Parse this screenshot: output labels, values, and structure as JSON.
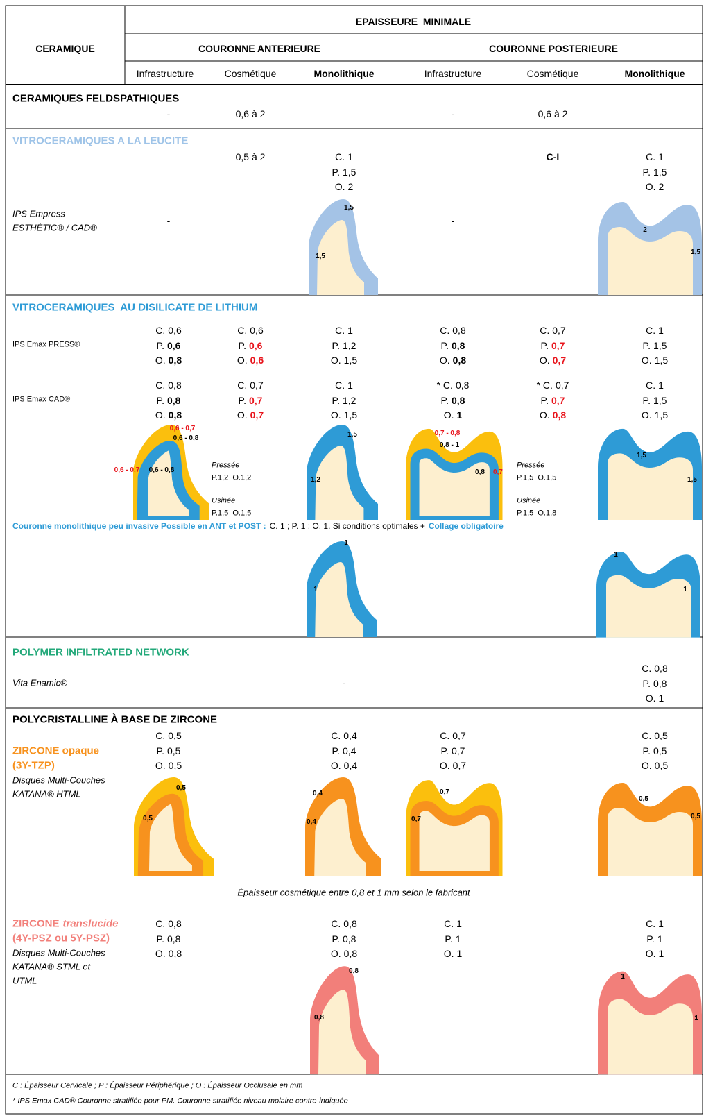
{
  "header": {
    "ceramique": "CERAMIQUE",
    "title": "EPAISSEURE  MINIMALE",
    "anterieure": "COURONNE ANTERIEURE",
    "posterieure": "COURONNE POSTERIEURE",
    "columns": [
      "Infrastructure",
      "Cosmétique",
      "Monolithique",
      "Infrastructure",
      "Cosmétique",
      "Monolithique"
    ]
  },
  "feldspathiques": {
    "title": "CERAMIQUES FELDSPATHIQUES",
    "infra_ant": "-",
    "cosm_ant": "0,6 à 2",
    "infra_post": "-",
    "cosm_post": "0,6 à 2"
  },
  "leucite": {
    "title": "VITROCERAMIQUES A LA LEUCITE",
    "product": [
      "IPS Empress",
      "ESTHÉTIC® / CAD®"
    ],
    "infra_ant": "-",
    "cosm_ant": "0,5 à 2",
    "mono_ant": [
      [
        "C.",
        "1"
      ],
      [
        "P.",
        "1,5"
      ],
      [
        "O.",
        "2"
      ]
    ],
    "infra_post": "-",
    "cosm_post": "C-I",
    "mono_post": [
      [
        "C.",
        "1"
      ],
      [
        "P.",
        "1,5"
      ],
      [
        "O.",
        "2"
      ]
    ],
    "diagram_labels": [
      "1,5",
      "1,5",
      "2",
      "1,5"
    ]
  },
  "disilicate": {
    "title": "VITROCERAMIQUES  AU DISILICATE DE LITHIUM",
    "rows": [
      {
        "product": "IPS Emax PRESS®",
        "cells": [
          [
            [
              "C.",
              "0,6"
            ],
            [
              "P.",
              "0,6"
            ],
            [
              "O.",
              "0,8"
            ]
          ],
          [
            [
              "C.",
              "0,6"
            ],
            [
              "P.",
              "0,6"
            ],
            [
              "O.",
              "0,6"
            ]
          ],
          [
            [
              "C.",
              "1"
            ],
            [
              "P.",
              "1,2"
            ],
            [
              "O.",
              "1,5"
            ]
          ],
          [
            [
              "C.",
              "0,8"
            ],
            [
              "P.",
              "0,8"
            ],
            [
              "O.",
              "0,8"
            ]
          ],
          [
            [
              "C.",
              "0,7"
            ],
            [
              "P.",
              "0,7"
            ],
            [
              "O.",
              "0,7"
            ]
          ],
          [
            [
              "C.",
              "1"
            ],
            [
              "P.",
              "1,5"
            ],
            [
              "O.",
              "1,5"
            ]
          ]
        ]
      },
      {
        "product": "IPS Emax CAD®",
        "cells": [
          [
            [
              "C.",
              "0,8"
            ],
            [
              "P.",
              "0,8"
            ],
            [
              "O.",
              "0,8"
            ]
          ],
          [
            [
              "C.",
              "0,7"
            ],
            [
              "P.",
              "0,7"
            ],
            [
              "O.",
              "0,7"
            ]
          ],
          [
            [
              "C.",
              "1"
            ],
            [
              "P.",
              "1,2"
            ],
            [
              "O.",
              "1,5"
            ]
          ],
          [
            [
              "* C.",
              "0,8"
            ],
            [
              "P.",
              "0,8"
            ],
            [
              "O.",
              "1"
            ]
          ],
          [
            [
              "* C.",
              "0,7"
            ],
            [
              "P.",
              "0,7"
            ],
            [
              "O.",
              "0,8"
            ]
          ],
          [
            [
              "C.",
              "1"
            ],
            [
              "P.",
              "1,5"
            ],
            [
              "O.",
              "1,5"
            ]
          ]
        ]
      }
    ],
    "diagram_labels": [
      "0,6 - 0,7",
      "0,6 - 0,8",
      "0,6 - 0,7",
      "0,6 - 0,8",
      "1,5",
      "1,2",
      "0,7 - 0,8",
      "0,8 - 1",
      "0,8",
      "0,7",
      "1,5",
      "1,5"
    ],
    "methods": [
      {
        "name": "Pressée",
        "values": "P.1,2  O.1,2"
      },
      {
        "name": "Usinée",
        "values": "P.1,5  O.1,5"
      },
      {
        "name": "Pressée",
        "values": "P.1,5  O.1,5"
      },
      {
        "name": "Usinée",
        "values": "P.1,5  O.1,8"
      }
    ],
    "note": {
      "lead": "Couronne monolithique peu invasive Possible en ANT et POST :",
      "text": "C. 1 ; P. 1 ; O. 1. Si conditions optimales +",
      "link": "Collage obligatoire"
    },
    "note_labels": [
      "1",
      "1",
      "1",
      "1"
    ]
  },
  "polymer": {
    "title": "POLYMER INFILTRATED NETWORK",
    "product": "Vita Enamic®",
    "mono_ant": "-",
    "mono_post": [
      [
        "C.",
        "0,8"
      ],
      [
        "P.",
        "0,8"
      ],
      [
        "O.",
        "1"
      ]
    ]
  },
  "zircone": {
    "title": "POLYCRISTALLINE À BASE DE ZIRCONE",
    "opaque": {
      "name": "ZIRCONE opaque",
      "grade": "(3Y-TZP)",
      "details": [
        "Disques Multi-Couches",
        "KATANA® HTML"
      ],
      "infra_ant": [
        [
          "C.",
          "0,5"
        ],
        [
          "P.",
          "0,5"
        ],
        [
          "O.",
          "0,5"
        ]
      ],
      "mono_ant": [
        [
          "C.",
          "0,4"
        ],
        [
          "P.",
          "0,4"
        ],
        [
          "O.",
          "0,4"
        ]
      ],
      "infra_post": [
        [
          "C.",
          "0,7"
        ],
        [
          "P.",
          "0,7"
        ],
        [
          "O.",
          "0,7"
        ]
      ],
      "mono_post": [
        [
          "C.",
          "0,5"
        ],
        [
          "P.",
          "0,5"
        ],
        [
          "O.",
          "0,5"
        ]
      ],
      "diagram_labels": [
        "0,5",
        "0,5",
        "0,4",
        "0,4",
        "0,7",
        "0,7",
        "0,5",
        "0,5"
      ]
    },
    "cosmetic_note": "Épaisseur cosmétique entre 0,8 et 1 mm selon le fabricant",
    "translucide": {
      "name": "ZIRCONE",
      "name_italic": "translucide",
      "grade": "(4Y-PSZ ou 5Y-PSZ)",
      "details": [
        "Disques Multi-Couches",
        "KATANA® STML et",
        "UTML"
      ],
      "infra_ant": [
        [
          "C.",
          "0,8"
        ],
        [
          "P.",
          "0,8"
        ],
        [
          "O.",
          "0,8"
        ]
      ],
      "mono_ant": [
        [
          "C.",
          "0,8"
        ],
        [
          "P.",
          "0,8"
        ],
        [
          "O.",
          "0,8"
        ]
      ],
      "infra_post": [
        [
          "C.",
          "1"
        ],
        [
          "P.",
          "1"
        ],
        [
          "O.",
          "1"
        ]
      ],
      "mono_post": [
        [
          "C.",
          "1"
        ],
        [
          "P.",
          "1"
        ],
        [
          "O.",
          "1"
        ]
      ],
      "diagram_labels": [
        "0,8",
        "0,8",
        "1",
        "1"
      ]
    }
  },
  "footer": [
    "C : Épaisseur Cervicale ; P : Épaisseur Périphérique ; O : Épaisseur Occlusale en mm",
    "* IPS Emax CAD® Couronne stratifiée pour PM. Couronne stratifiée niveau molaire contre-indiquée"
  ]
}
